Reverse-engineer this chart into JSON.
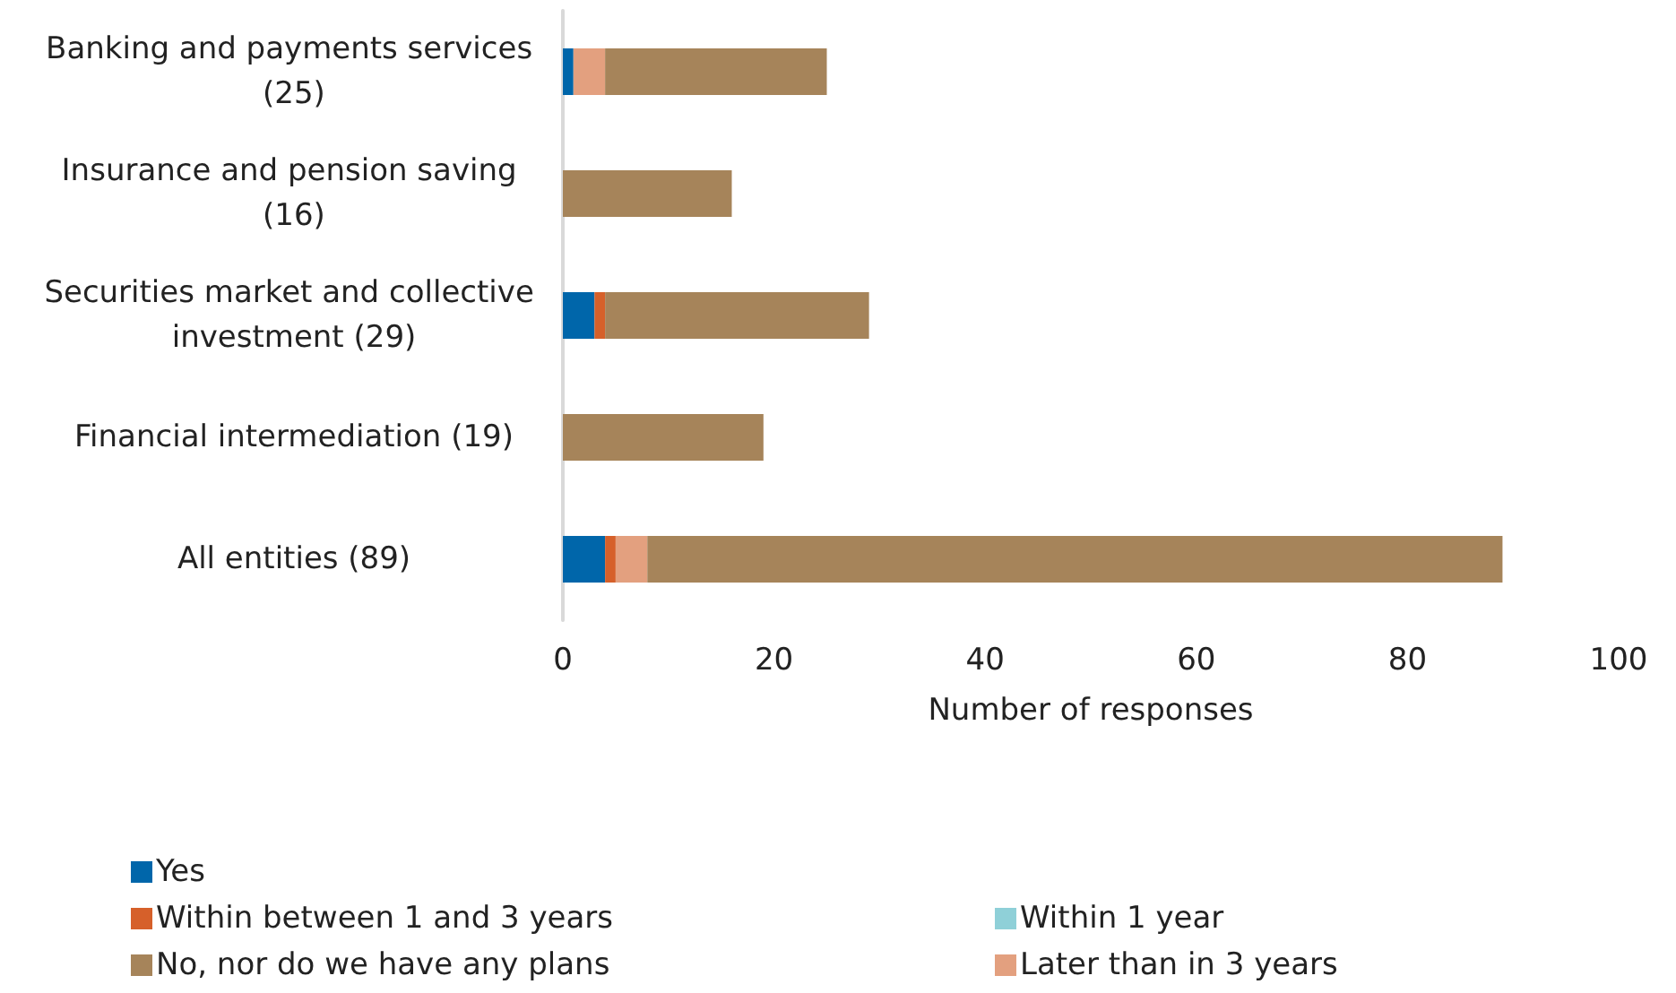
{
  "chart_data": {
    "type": "bar",
    "orientation": "horizontal",
    "stacked": true,
    "xlabel": "Number of responses",
    "categories": [
      "Banking and payments services (25)",
      "Insurance and pension saving (16)",
      "Securities market and collective investment (29)",
      "Financial intermediation (19)",
      "All entities (89)"
    ],
    "series": [
      {
        "name": "Yes",
        "color": "#0066aa",
        "values": [
          1,
          0,
          3,
          0,
          4
        ]
      },
      {
        "name": "Within 1 year",
        "color": "#8fd0d8",
        "values": [
          0,
          0,
          0,
          0,
          0
        ]
      },
      {
        "name": "Within between 1 and 3 years",
        "color": "#d6602a",
        "values": [
          0,
          0,
          1,
          0,
          1
        ]
      },
      {
        "name": "Later than in 3 years",
        "color": "#e3a07f",
        "values": [
          3,
          0,
          0,
          0,
          3
        ]
      },
      {
        "name": "No, nor do we have any plans",
        "color": "#a6845a",
        "values": [
          21,
          16,
          25,
          19,
          81
        ]
      }
    ],
    "xlim": [
      0,
      100
    ],
    "xticks": [
      0,
      20,
      40,
      60,
      80,
      100
    ],
    "grid": false,
    "legend": "bottom"
  }
}
